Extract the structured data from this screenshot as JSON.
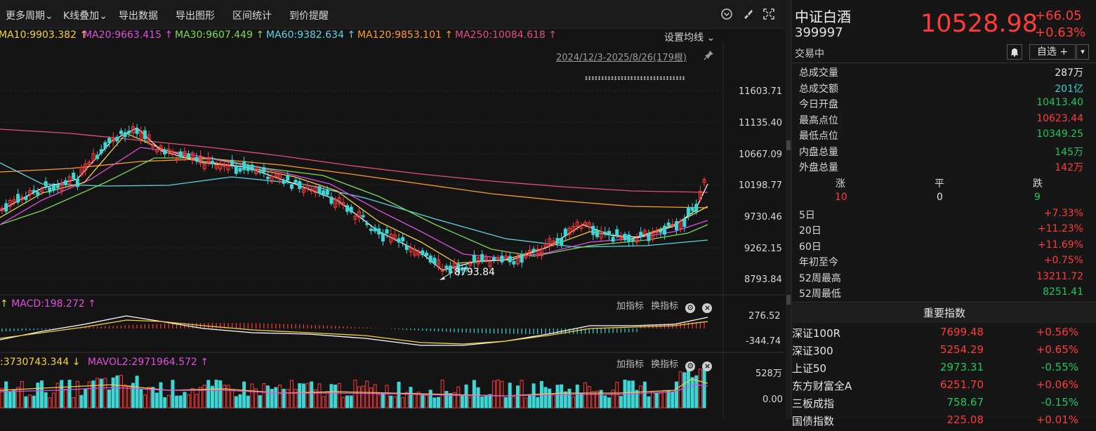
{
  "toolbar": {
    "items": [
      "更多周期",
      "K线叠加",
      "导出数据",
      "导出图形",
      "区间统计",
      "到价提醒"
    ],
    "chevron": "⌄"
  },
  "ma_legend": {
    "items": [
      {
        "text": "MA10:9903.382 ↑",
        "color": "#f5d142"
      },
      {
        "text": "MA20:9663.415 ↑",
        "color": "#e04fe0"
      },
      {
        "text": "MA30:9607.449 ↑",
        "color": "#7ed957"
      },
      {
        "text": "MA60:9382.634 ↑",
        "color": "#5fd3e6"
      },
      {
        "text": "MA120:9853.101 ↑",
        "color": "#ff9a2e"
      },
      {
        "text": "MA250:10084.618 ↑",
        "color": "#e0507a"
      }
    ],
    "settings": "设置均线 ⌄"
  },
  "range_label": "2024/12/3-2025/8/26(179根)",
  "price_axis": [
    "11603.71",
    "11135.40",
    "10667.09",
    "10198.77",
    "9730.46",
    "9262.15",
    "8793.84"
  ],
  "low_marker": "8793.84",
  "macd": {
    "label": "MACD:198.272 ↑",
    "axis": [
      "276.52",
      "-344.74"
    ],
    "tools": [
      "加指标",
      "换指标"
    ]
  },
  "vol": {
    "label1": ":3730743.344 ↓",
    "label2": "MAVOL2:2971964.572 ↑",
    "axis": [
      "528万",
      "0.00"
    ],
    "tools": [
      "加指标",
      "换指标"
    ]
  },
  "quote": {
    "name": "中证白酒",
    "code": "399997",
    "price": "10528.98",
    "change": "+66.05",
    "pct": "+0.63%",
    "status": "交易中",
    "watch": "自选 +"
  },
  "stats": [
    {
      "k": "总成交量",
      "v": "287万",
      "c": "white"
    },
    {
      "k": "总成交额",
      "v": "201亿",
      "c": "cyan"
    },
    {
      "k": "今日开盘",
      "v": "10413.40",
      "c": "green"
    },
    {
      "k": "最高点位",
      "v": "10623.44",
      "c": "red"
    },
    {
      "k": "最低点位",
      "v": "10349.25",
      "c": "green"
    },
    {
      "k": "内盘总量",
      "v": "145万",
      "c": "green"
    },
    {
      "k": "外盘总量",
      "v": "142万",
      "c": "red"
    }
  ],
  "breadth": {
    "labels": [
      "涨",
      "平",
      "跌"
    ],
    "values": [
      "10",
      "0",
      "9"
    ]
  },
  "perf": [
    {
      "k": "5日",
      "v": "+7.33%",
      "c": "red"
    },
    {
      "k": "20日",
      "v": "+11.23%",
      "c": "red"
    },
    {
      "k": "60日",
      "v": "+11.69%",
      "c": "red"
    },
    {
      "k": "年初至今",
      "v": "+0.75%",
      "c": "red"
    },
    {
      "k": "52周最高",
      "v": "13211.72",
      "c": "red"
    },
    {
      "k": "52周最低",
      "v": "8251.41",
      "c": "green"
    }
  ],
  "important_title": "重要指数",
  "indices": [
    {
      "n": "深证100R",
      "p": "7699.48",
      "c": "+0.56%",
      "col": "red"
    },
    {
      "n": "深证300",
      "p": "5254.29",
      "c": "+0.65%",
      "col": "red"
    },
    {
      "n": "上证50",
      "p": "2973.31",
      "c": "-0.55%",
      "col": "green"
    },
    {
      "n": "东方财富全A",
      "p": "6251.70",
      "c": "+0.06%",
      "col": "red"
    },
    {
      "n": "三板成指",
      "p": "758.67",
      "c": "-0.15%",
      "col": "green"
    },
    {
      "n": "国债指数",
      "p": "225.08",
      "c": "+0.01%",
      "col": "red"
    }
  ]
}
